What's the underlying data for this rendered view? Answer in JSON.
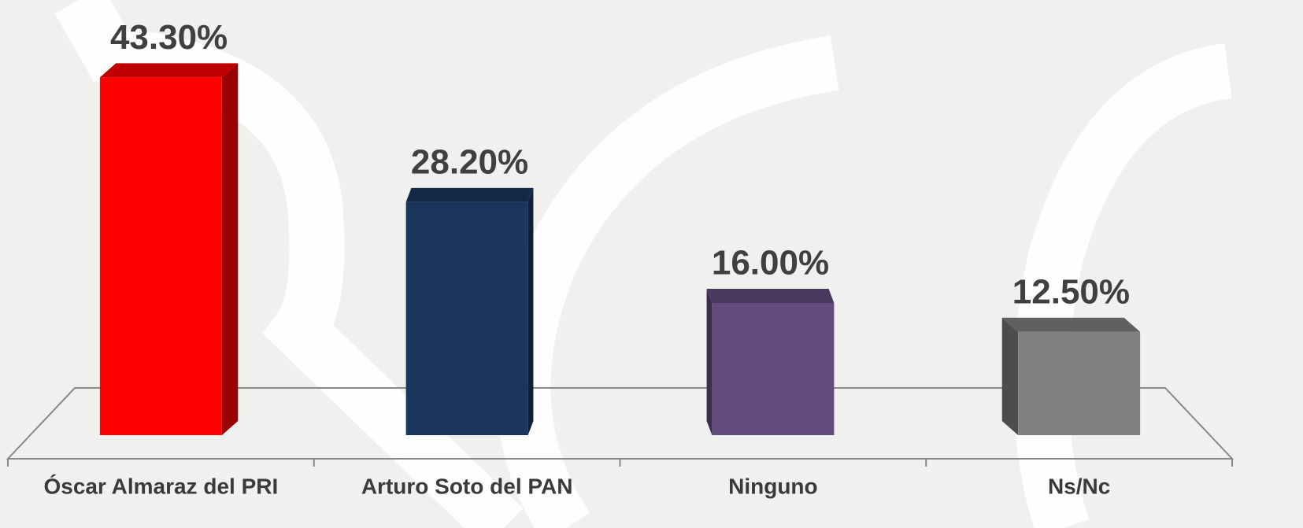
{
  "chart_data": {
    "type": "bar3d",
    "categories": [
      "Óscar Almaraz del PRI",
      "Arturo Soto del PAN",
      "Ninguno",
      "Ns/Nc"
    ],
    "values": [
      43.3,
      28.2,
      16.0,
      12.5
    ],
    "value_labels": [
      "43.30%",
      "28.20%",
      "16.00%",
      "12.50%"
    ],
    "colors": [
      "#ff0000",
      "#1b365d",
      "#624c7e",
      "#808080"
    ],
    "ylim": [
      0,
      50
    ]
  }
}
